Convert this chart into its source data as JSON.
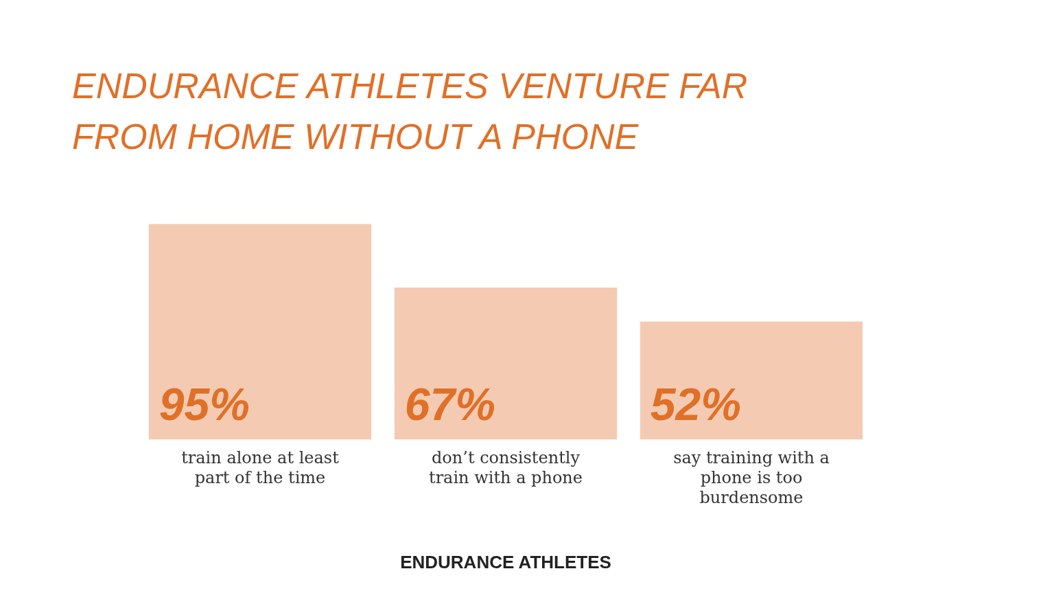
{
  "chart_data": {
    "type": "bar",
    "title": "ENDURANCE ATHLETES VENTURE FAR FROM HOME WITHOUT A PHONE",
    "xlabel": "ENDURANCE ATHLETES",
    "categories": [
      "train alone at least part of the time",
      "don’t consistently train with a phone",
      "say training with a phone is too burdensome"
    ],
    "values": [
      95,
      67,
      52
    ],
    "value_labels": [
      "95%",
      "67%",
      "52%"
    ],
    "color": "#f4cbb2",
    "grid": false,
    "legend": false
  }
}
